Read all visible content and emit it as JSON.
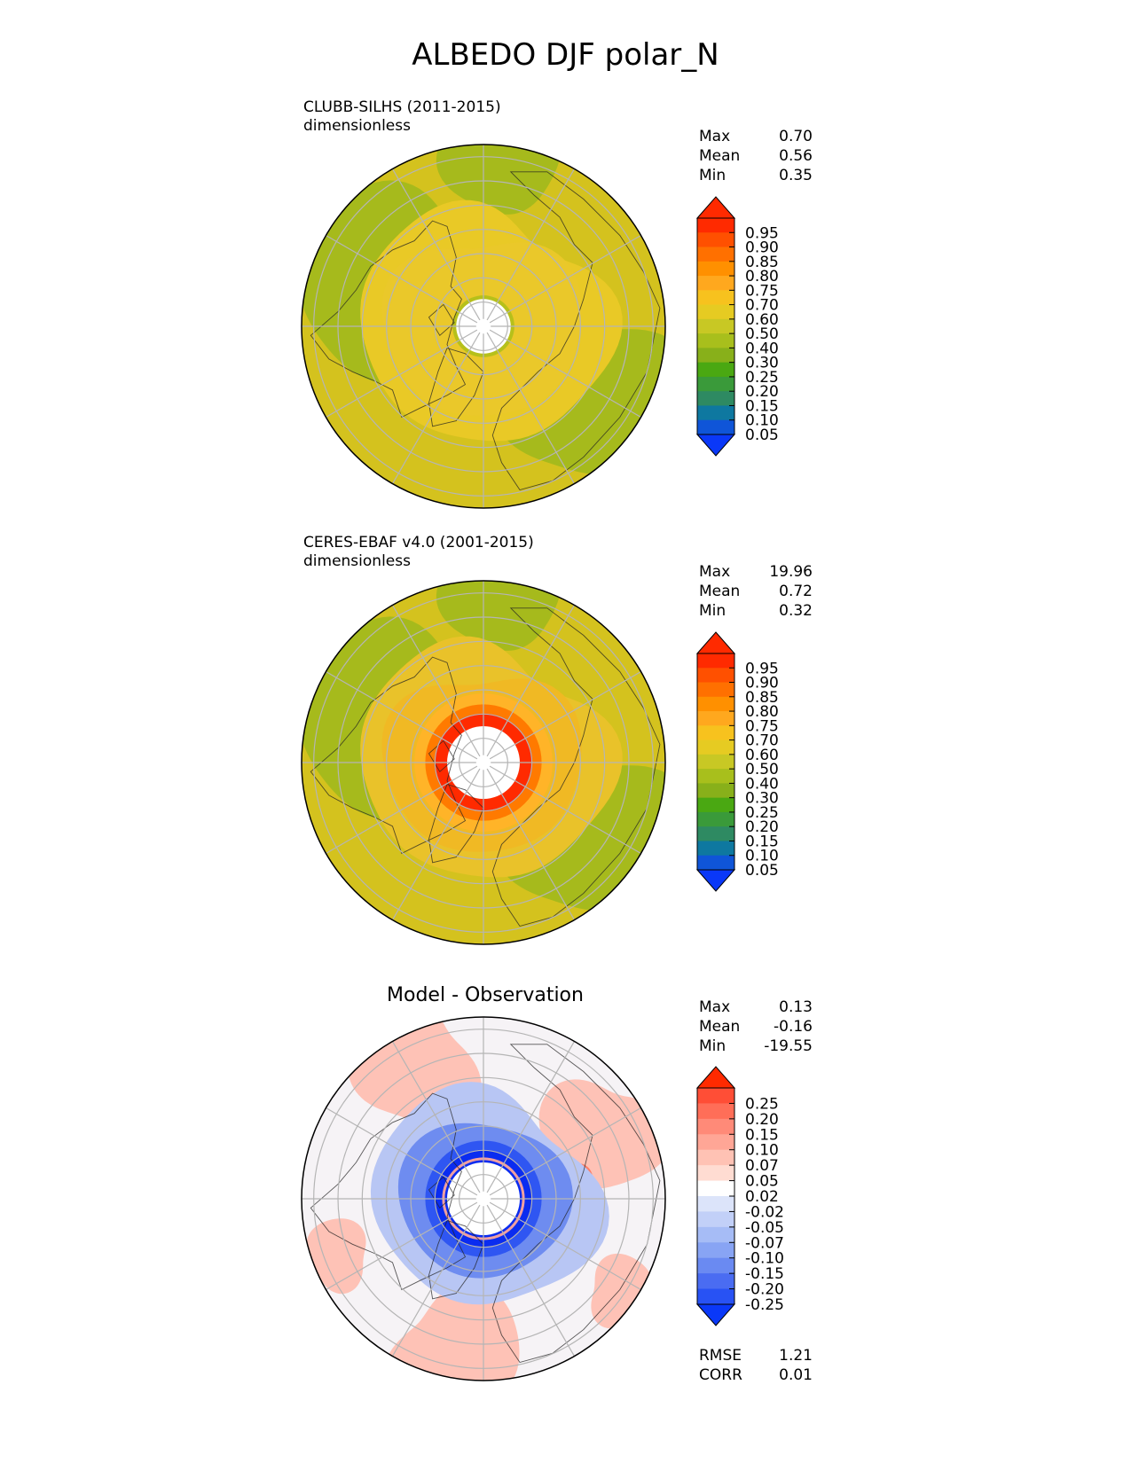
{
  "title": "ALBEDO DJF polar_N",
  "panels": [
    {
      "name": "CLUBB-SILHS (2011-2015)",
      "units": "dimensionless",
      "stats": {
        "max_label": "Max",
        "max": "0.70",
        "mean_label": "Mean",
        "mean": "0.56",
        "min_label": "Min",
        "min": "0.35"
      }
    },
    {
      "name": "CERES-EBAF v4.0 (2001-2015)",
      "units": "dimensionless",
      "stats": {
        "max_label": "Max",
        "max": "19.96",
        "mean_label": "Mean",
        "mean": "0.72",
        "min_label": "Min",
        "min": "0.32"
      }
    },
    {
      "title": "Model - Observation",
      "stats": {
        "max_label": "Max",
        "max": "0.13",
        "mean_label": "Mean",
        "mean": "-0.16",
        "min_label": "Min",
        "min": "-19.55"
      },
      "metrics": {
        "rmse_label": "RMSE",
        "rmse": "1.21",
        "corr_label": "CORR",
        "corr": "0.01"
      }
    }
  ],
  "chart_data": [
    {
      "type": "heatmap",
      "projection": "north polar stereographic",
      "field": "ALBEDO",
      "season": "DJF",
      "colorbar": {
        "ticks": [
          "0.95",
          "0.90",
          "0.85",
          "0.80",
          "0.75",
          "0.70",
          "0.60",
          "0.50",
          "0.40",
          "0.30",
          "0.25",
          "0.20",
          "0.15",
          "0.10",
          "0.05"
        ],
        "colors": [
          "#f7e64a",
          "#ff2a00",
          "#ff5000",
          "#ff7000",
          "#ff9000",
          "#ffa81e",
          "#f7c21e",
          "#e6cb22",
          "#c8c824",
          "#a8bf1c",
          "#88b01a",
          "#4aa812",
          "#3a9a3a",
          "#2e8a62",
          "#0e78a0",
          "#0f55d8",
          "#0a38f8"
        ],
        "extend": "both"
      },
      "domain_colors": {
        "ocean": "#d4c21e",
        "land": "#9eb81c",
        "interior": "#e9c926",
        "pole_hole": "#ffffff"
      }
    },
    {
      "type": "heatmap",
      "projection": "north polar stereographic",
      "field": "ALBEDO",
      "season": "DJF",
      "colorbar": {
        "ticks": [
          "0.95",
          "0.90",
          "0.85",
          "0.80",
          "0.75",
          "0.70",
          "0.60",
          "0.50",
          "0.40",
          "0.30",
          "0.25",
          "0.20",
          "0.15",
          "0.10",
          "0.05"
        ],
        "extend": "both"
      },
      "domain_colors": {
        "ocean": "#d4c21e",
        "land": "#9eb81c",
        "interior": "#e9c22a",
        "ring1": "#ffa81e",
        "ring2": "#ff7000",
        "ring3": "#ff2a00",
        "pole_hole": "#ffffff"
      }
    },
    {
      "type": "heatmap",
      "projection": "north polar stereographic",
      "field": "ALBEDO difference",
      "season": "DJF",
      "colorbar": {
        "ticks": [
          "0.25",
          "0.20",
          "0.15",
          "0.10",
          "0.07",
          "0.05",
          "0.02",
          "-0.02",
          "-0.05",
          "-0.07",
          "-0.10",
          "-0.15",
          "-0.20",
          "-0.25"
        ],
        "colors": [
          "#ff2a00",
          "#ff4e36",
          "#ff6e58",
          "#ff8a78",
          "#ffa696",
          "#ffc2b4",
          "#ffdcd2",
          "#ffffff",
          "#dce4fa",
          "#c2d0f8",
          "#a6bcf6",
          "#88a4f4",
          "#6a8af2",
          "#4a6cf2",
          "#2852f4",
          "#0a38f8"
        ],
        "extend": "both"
      },
      "domain_colors": {
        "background": "#f5f6fc",
        "positive": "#ffb4a4",
        "negative": "#5a7ef2",
        "strong_negative": "#0a30f0"
      }
    }
  ]
}
